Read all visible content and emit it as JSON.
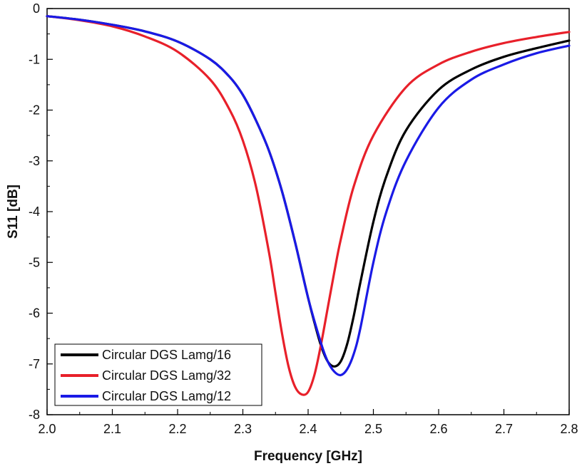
{
  "chart_data": {
    "type": "line",
    "title": "",
    "xlabel": "Frequency [GHz]",
    "ylabel": "S11 [dB]",
    "xlim": [
      2.0,
      2.8
    ],
    "ylim": [
      -8,
      0
    ],
    "xticks": [
      "2.0",
      "2.1",
      "2.2",
      "2.3",
      "2.4",
      "2.5",
      "2.6",
      "2.7",
      "2.8"
    ],
    "yticks": [
      "0",
      "-1",
      "-2",
      "-3",
      "-4",
      "-5",
      "-6",
      "-7",
      "-8"
    ],
    "grid": false,
    "legend_position": "bottom-left",
    "series": [
      {
        "name": "Circular DGS Lamg/16",
        "color": "#000000",
        "x": [
          2.0,
          2.05,
          2.1,
          2.15,
          2.2,
          2.25,
          2.28,
          2.3,
          2.32,
          2.34,
          2.36,
          2.38,
          2.4,
          2.41,
          2.42,
          2.43,
          2.44,
          2.45,
          2.46,
          2.47,
          2.48,
          2.5,
          2.52,
          2.55,
          2.6,
          2.65,
          2.7,
          2.75,
          2.8
        ],
        "y": [
          -0.15,
          -0.22,
          -0.32,
          -0.45,
          -0.65,
          -1.0,
          -1.35,
          -1.7,
          -2.2,
          -2.8,
          -3.6,
          -4.6,
          -5.7,
          -6.2,
          -6.65,
          -6.95,
          -7.05,
          -6.95,
          -6.6,
          -6.05,
          -5.4,
          -4.2,
          -3.3,
          -2.4,
          -1.6,
          -1.2,
          -0.95,
          -0.78,
          -0.63
        ]
      },
      {
        "name": "Circular DGS Lamg/32",
        "color": "#e8202a",
        "x": [
          2.0,
          2.05,
          2.1,
          2.15,
          2.2,
          2.25,
          2.28,
          2.3,
          2.32,
          2.34,
          2.35,
          2.36,
          2.37,
          2.38,
          2.39,
          2.4,
          2.41,
          2.42,
          2.43,
          2.44,
          2.45,
          2.47,
          2.5,
          2.55,
          2.6,
          2.65,
          2.7,
          2.75,
          2.8
        ],
        "y": [
          -0.15,
          -0.23,
          -0.35,
          -0.55,
          -0.85,
          -1.4,
          -2.0,
          -2.6,
          -3.5,
          -4.8,
          -5.6,
          -6.4,
          -7.05,
          -7.45,
          -7.6,
          -7.55,
          -7.2,
          -6.6,
          -5.9,
          -5.2,
          -4.55,
          -3.5,
          -2.5,
          -1.55,
          -1.1,
          -0.85,
          -0.68,
          -0.56,
          -0.46
        ]
      },
      {
        "name": "Circular DGS Lamg/12",
        "color": "#1a1ae6",
        "x": [
          2.0,
          2.05,
          2.1,
          2.15,
          2.2,
          2.25,
          2.28,
          2.3,
          2.32,
          2.34,
          2.36,
          2.38,
          2.4,
          2.42,
          2.43,
          2.44,
          2.45,
          2.46,
          2.47,
          2.48,
          2.5,
          2.52,
          2.55,
          2.6,
          2.65,
          2.7,
          2.75,
          2.8
        ],
        "y": [
          -0.15,
          -0.22,
          -0.32,
          -0.45,
          -0.65,
          -1.0,
          -1.35,
          -1.7,
          -2.2,
          -2.8,
          -3.6,
          -4.6,
          -5.7,
          -6.6,
          -6.95,
          -7.15,
          -7.22,
          -7.1,
          -6.8,
          -6.3,
          -5.0,
          -4.0,
          -3.0,
          -1.95,
          -1.4,
          -1.1,
          -0.88,
          -0.73
        ]
      }
    ]
  }
}
